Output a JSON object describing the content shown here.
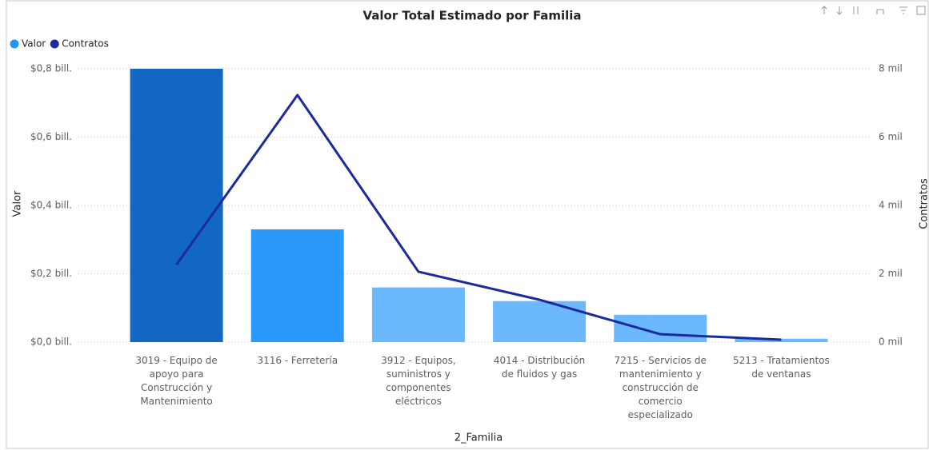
{
  "chart_data": {
    "type": "combo",
    "title": "Valor Total Estimado por Familia",
    "x_label": "2_Familia",
    "y_label": "Valor",
    "y2_label": "Contratos",
    "legend": "top-left",
    "grid": true,
    "categories": [
      "3019 - Equipo de apoyo para Construcción y Mantenimiento",
      "3116 - Ferretería",
      "3912 - Equipos, suministros y componentes eléctricos",
      "4014 - Distribución de fluidos y gas",
      "7215 - Servicios de mantenimiento y construcción de comercio especializado",
      "5213 - Tratamientos de ventanas"
    ],
    "series": [
      {
        "name": "Valor",
        "type": "bar",
        "color": "#2196f3",
        "colors": [
          "#1267c2",
          "#2b99fb",
          "#6cb8fd",
          "#6cb8fd",
          "#6cb8fd",
          "#6cb8fd"
        ],
        "values": [
          0.8,
          0.33,
          0.16,
          0.12,
          0.08,
          0.01
        ]
      },
      {
        "name": "Contratos",
        "type": "line",
        "axis": "y2",
        "color": "#1c2a9c",
        "values": [
          2270,
          7230,
          2060,
          1240,
          230,
          70
        ]
      }
    ],
    "ylim": [
      0,
      0.8
    ],
    "yticks": [
      {
        "value": 0,
        "label": "$0,0 bill."
      },
      {
        "value": 0.2,
        "label": "$0,2 bill."
      },
      {
        "value": 0.4,
        "label": "$0,4 bill."
      },
      {
        "value": 0.6,
        "label": "$0,6 bill."
      },
      {
        "value": 0.8,
        "label": "$0,8 bill."
      }
    ],
    "y2lim": [
      0,
      8000
    ],
    "y2ticks": [
      {
        "value": 0,
        "label": "0 mil"
      },
      {
        "value": 2000,
        "label": "2 mil"
      },
      {
        "value": 4000,
        "label": "4 mil"
      },
      {
        "value": 6000,
        "label": "6 mil"
      },
      {
        "value": 8000,
        "label": "8 mil"
      }
    ]
  }
}
